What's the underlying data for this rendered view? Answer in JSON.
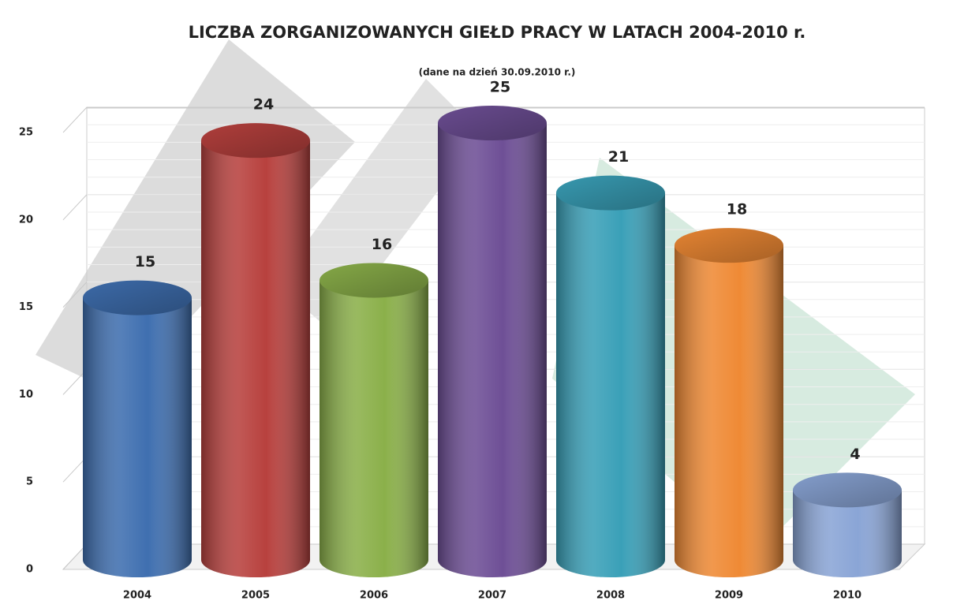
{
  "chart_data": {
    "type": "bar",
    "title": "LICZBA ZORGANIZOWANYCH GIEŁD PRACY W LATACH 2004-2010 r.",
    "subtitle": "(dane na dzień 30.09.2010 r.)",
    "categories": [
      "2004",
      "2005",
      "2006",
      "2007",
      "2008",
      "2009",
      "2010"
    ],
    "values": [
      15,
      24,
      16,
      25,
      21,
      18,
      4
    ],
    "colors": [
      "#3f6fb0",
      "#b8413e",
      "#8bb04a",
      "#6e4f96",
      "#3aa0b8",
      "#ef8a35",
      "#8aa5d6"
    ],
    "ylim": [
      0,
      25
    ],
    "yticks": [
      0,
      5,
      10,
      15,
      20,
      25
    ],
    "grid": true
  }
}
